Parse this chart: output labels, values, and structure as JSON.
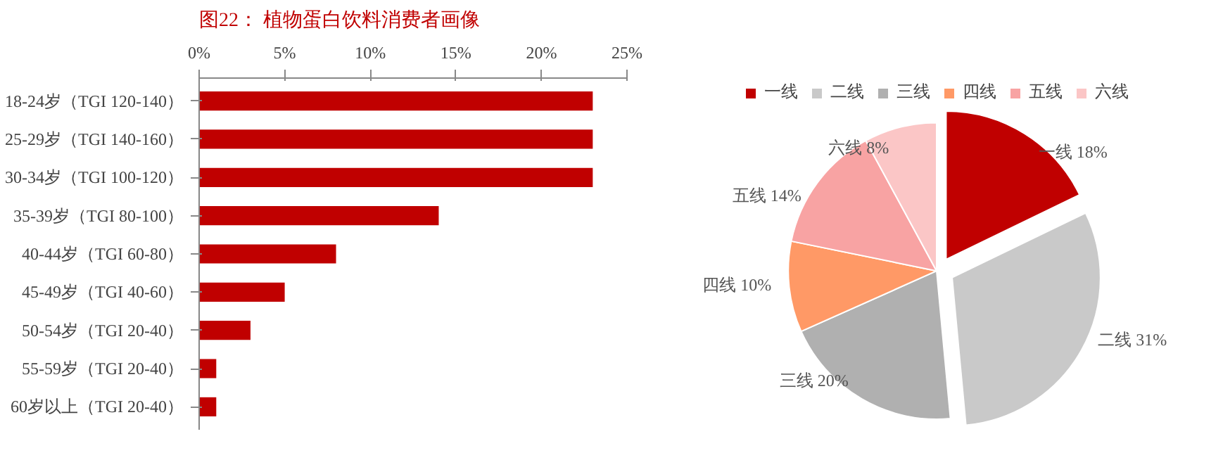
{
  "chart_data": [
    {
      "type": "bar",
      "orientation": "horizontal",
      "title": "图22：  植物蛋白饮料消费者画像",
      "categories": [
        "18-24岁（TGI 120-140）",
        "25-29岁（TGI 140-160）",
        "30-34岁（TGI 100-120）",
        "35-39岁（TGI 80-100）",
        "40-44岁（TGI 60-80）",
        "45-49岁（TGI 40-60）",
        "50-54岁（TGI 20-40）",
        "55-59岁（TGI 20-40）",
        "60岁以上（TGI 20-40）"
      ],
      "values": [
        23,
        23,
        23,
        14,
        8,
        5,
        3,
        1,
        1
      ],
      "color": "#c00000",
      "xlim": [
        0,
        25
      ],
      "xticks": [
        {
          "value": 0,
          "label": "0%"
        },
        {
          "value": 5,
          "label": "5%"
        },
        {
          "value": 10,
          "label": "10%"
        },
        {
          "value": 15,
          "label": "15%"
        },
        {
          "value": 20,
          "label": "20%"
        },
        {
          "value": 25,
          "label": "25%"
        }
      ],
      "grid": false
    },
    {
      "type": "pie",
      "categories": [
        "一线",
        "二线",
        "三线",
        "四线",
        "五线",
        "六线"
      ],
      "values": [
        18,
        31,
        20,
        10,
        14,
        8
      ],
      "colors": [
        "#c00000",
        "#c9c9c9",
        "#b0b0b0",
        "#ff9966",
        "#f8a3a3",
        "#fbc6c6"
      ],
      "value_labels": [
        "一线 18%",
        "二线 31%",
        "三线 20%",
        "四线 10%",
        "五线 14%",
        "六线 8%"
      ],
      "legend": "top"
    }
  ]
}
